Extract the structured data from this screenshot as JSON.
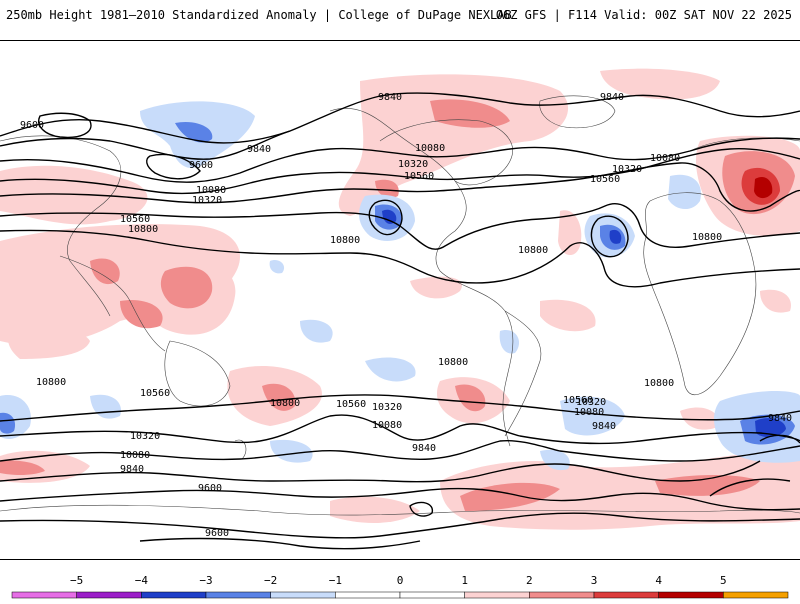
{
  "header": {
    "title_left": "250mb Height 1981–2010 Standardized Anomaly | College of DuPage NEXLAB",
    "title_right": "06Z GFS | F114 Valid: 00Z SAT NOV 22 2025"
  },
  "colors": {
    "neg5": "#e66ee6",
    "neg4": "#9b1ec8",
    "neg3": "#1f3fc8",
    "neg2": "#5a82e6",
    "neg1": "#c8dcfa",
    "zero": "#ffffff",
    "pos1": "#fcd2d2",
    "pos2": "#f08c8c",
    "pos3": "#dc3c3c",
    "pos4": "#b40000",
    "pos5": "#f5a000"
  },
  "colorbar": {
    "ticks": [
      "−5",
      "−4",
      "−3",
      "−2",
      "−1",
      "0",
      "1",
      "2",
      "3",
      "4",
      "5"
    ]
  },
  "contour_labels": {
    "l9840a": "9840",
    "l9840b": "9840",
    "l9840c": "9840",
    "l9840d": "9840",
    "l9840e": "9840",
    "l9840f": "9840",
    "l9600a": "9600",
    "l9600b": "9600",
    "l9600c": "9600",
    "l9600d": "9600",
    "l10080a": "10080",
    "l10080b": "10080",
    "l10080c": "10080",
    "l10080d": "10080",
    "l10080e": "10080",
    "l10320a": "10320",
    "l10320b": "10320",
    "l10320c": "10320",
    "l10320d": "10320",
    "l10320e": "10320",
    "l10560a": "10560",
    "l10560b": "10560",
    "l10560c": "10560",
    "l10560d": "10560",
    "l10560e": "10560",
    "l10800a": "10800",
    "l10800b": "10800",
    "l10800c": "10800",
    "l10800d": "10800",
    "l10800e": "10800",
    "l10800f": "10800",
    "l10800g": "10800",
    "l10800h": "10800"
  }
}
